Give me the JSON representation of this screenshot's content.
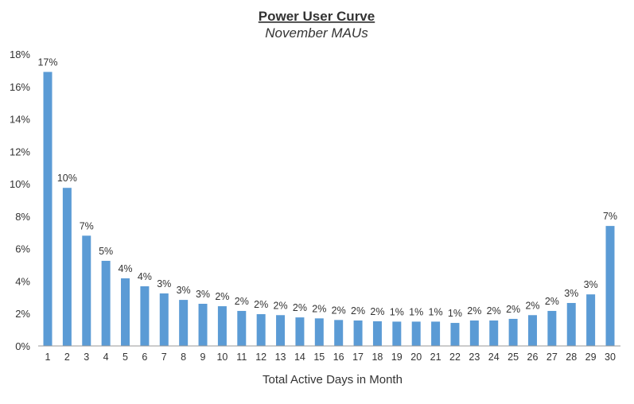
{
  "chart_data": {
    "type": "bar",
    "title": "Power User Curve",
    "subtitle": "November MAUs",
    "xlabel": "Total Active Days in Month",
    "ylabel": "",
    "ylim": [
      0,
      18
    ],
    "yticks": [
      0,
      2,
      4,
      6,
      8,
      10,
      12,
      14,
      16,
      18
    ],
    "ytick_labels": [
      "0%",
      "2%",
      "4%",
      "6%",
      "8%",
      "10%",
      "12%",
      "14%",
      "16%",
      "18%"
    ],
    "grid": false,
    "legend": "none",
    "bar_color": "#5b9bd5",
    "categories": [
      "1",
      "2",
      "3",
      "4",
      "5",
      "6",
      "7",
      "8",
      "9",
      "10",
      "11",
      "12",
      "13",
      "14",
      "15",
      "16",
      "17",
      "18",
      "19",
      "20",
      "21",
      "22",
      "23",
      "24",
      "25",
      "26",
      "27",
      "28",
      "29",
      "30"
    ],
    "values": [
      16.9,
      9.75,
      6.8,
      5.25,
      4.17,
      3.68,
      3.24,
      2.84,
      2.6,
      2.45,
      2.16,
      1.96,
      1.9,
      1.76,
      1.7,
      1.6,
      1.57,
      1.52,
      1.5,
      1.5,
      1.5,
      1.42,
      1.57,
      1.57,
      1.67,
      1.9,
      2.16,
      2.65,
      3.18,
      7.4
    ],
    "data_labels": [
      "17%",
      "10%",
      "7%",
      "5%",
      "4%",
      "4%",
      "3%",
      "3%",
      "3%",
      "2%",
      "2%",
      "2%",
      "2%",
      "2%",
      "2%",
      "2%",
      "2%",
      "2%",
      "1%",
      "1%",
      "1%",
      "1%",
      "2%",
      "2%",
      "2%",
      "2%",
      "2%",
      "3%",
      "3%",
      "7%"
    ]
  }
}
